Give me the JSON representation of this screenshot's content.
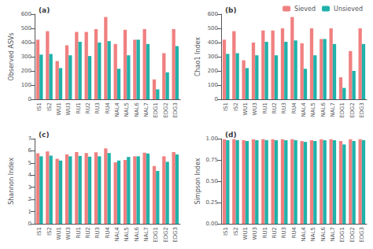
{
  "chart_data": [
    {
      "type": "bar",
      "title": "(a)",
      "ylabel": "Observed ASVs",
      "categories": [
        "IS1",
        "IS2",
        "WU1",
        "WU3",
        "RU1",
        "RU2",
        "RU3",
        "RU4",
        "NAL4",
        "NAL5",
        "NAL6",
        "NAL7",
        "EDG1",
        "EDG2",
        "EDG3"
      ],
      "series": [
        {
          "color": "#F08080",
          "values": [
            420,
            480,
            270,
            380,
            475,
            475,
            495,
            580,
            390,
            490,
            420,
            495,
            140,
            325,
            495
          ]
        },
        {
          "color": "#20B2AA",
          "values": [
            315,
            320,
            220,
            310,
            405,
            305,
            400,
            410,
            215,
            310,
            420,
            390,
            70,
            190,
            375
          ]
        }
      ],
      "ylim": [
        0,
        600
      ],
      "yticks": [
        0,
        100,
        200,
        300,
        400,
        500,
        600
      ],
      "grid": false
    },
    {
      "type": "bar",
      "title": "(b)",
      "ylabel": "Chao1 Index",
      "categories": [
        "IS1",
        "IS2",
        "WU1",
        "WU3",
        "RU1",
        "RU2",
        "RU3",
        "RU4",
        "NAL4",
        "NAL5",
        "NAL6",
        "NAL7",
        "EDG1",
        "EDG2",
        "EDG3"
      ],
      "series": [
        {
          "name": "Sieved",
          "color": "#F08080",
          "values": [
            420,
            480,
            275,
            400,
            485,
            485,
            500,
            580,
            395,
            500,
            425,
            500,
            155,
            340,
            500
          ]
        },
        {
          "name": "Unsieved",
          "color": "#20B2AA",
          "values": [
            320,
            325,
            220,
            310,
            405,
            310,
            405,
            415,
            215,
            310,
            425,
            390,
            80,
            200,
            390
          ]
        }
      ],
      "ylim": [
        0,
        600
      ],
      "yticks": [
        0,
        100,
        200,
        300,
        400,
        500,
        600
      ],
      "grid": false,
      "legend": "upper right"
    },
    {
      "type": "bar",
      "title": "(c)",
      "ylabel": "Shannon Index",
      "categories": [
        "IS1",
        "IS2",
        "WU1",
        "WU3",
        "RU1",
        "RU2",
        "RU3",
        "RU4",
        "NAL4",
        "NAL5",
        "NAL6",
        "NAL7",
        "EDG1",
        "EDG2",
        "EDG3"
      ],
      "series": [
        {
          "color": "#F08080",
          "values": [
            5.8,
            5.95,
            5.35,
            5.7,
            5.9,
            5.82,
            5.88,
            6.2,
            5.05,
            5.25,
            5.55,
            5.85,
            4.75,
            5.55,
            5.9
          ]
        },
        {
          "color": "#20B2AA",
          "values": [
            5.55,
            5.6,
            5.2,
            5.55,
            5.58,
            5.52,
            5.55,
            5.82,
            5.2,
            5.5,
            5.55,
            5.78,
            4.35,
            5.1,
            5.7
          ]
        }
      ],
      "ylim": [
        0,
        7
      ],
      "yticks": [
        0,
        1,
        2,
        3,
        4,
        5,
        6,
        7
      ],
      "grid": false
    },
    {
      "type": "bar",
      "title": "(d)",
      "ylabel": "Simpson Index",
      "categories": [
        "IS1",
        "IS2",
        "WU1",
        "WU3",
        "RU1",
        "RU2",
        "RU3",
        "RU4",
        "NAL4",
        "NAL5",
        "NAL6",
        "NAL7",
        "EDG1",
        "EDG2",
        "EDG3"
      ],
      "series": [
        {
          "color": "#F08080",
          "values": [
            0.993,
            0.994,
            0.983,
            0.993,
            0.994,
            0.993,
            0.993,
            0.994,
            0.972,
            0.982,
            0.993,
            0.993,
            0.972,
            0.993,
            0.994
          ]
        },
        {
          "color": "#20B2AA",
          "values": [
            0.982,
            0.983,
            0.972,
            0.982,
            0.983,
            0.982,
            0.982,
            0.983,
            0.962,
            0.972,
            0.982,
            0.982,
            0.932,
            0.972,
            0.983
          ]
        }
      ],
      "ylim": [
        0,
        1
      ],
      "yticks": [
        {
          "value": 0,
          "label": "0.00"
        },
        0.25,
        {
          "value": 0.5,
          "label": "0.50"
        },
        0.75,
        {
          "value": 1,
          "label": "1.00"
        }
      ],
      "grid": false
    }
  ]
}
